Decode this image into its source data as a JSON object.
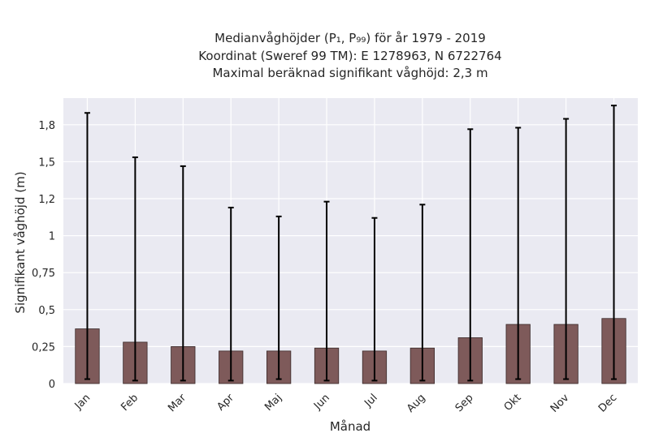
{
  "chart_data": {
    "type": "bar",
    "title_lines": [
      "Medianvåghöjder (P₁, P₉₉) för år 1979 - 2019",
      "Koordinat (Sweref 99 TM): E 1278963, N 6722764",
      "Maximal beräknad signifikant våghöjd: 2,3 m"
    ],
    "xlabel": "Månad",
    "ylabel": "Signifikant våghöjd (m)",
    "categories": [
      "Jan",
      "Feb",
      "Mar",
      "Apr",
      "Maj",
      "Jun",
      "Jul",
      "Aug",
      "Sep",
      "Okt",
      "Nov",
      "Dec"
    ],
    "values": [
      0.37,
      0.28,
      0.25,
      0.22,
      0.22,
      0.24,
      0.22,
      0.24,
      0.31,
      0.4,
      0.4,
      0.44
    ],
    "p1": [
      0.03,
      0.02,
      0.02,
      0.02,
      0.03,
      0.02,
      0.02,
      0.02,
      0.02,
      0.03,
      0.03,
      0.03
    ],
    "p99": [
      1.83,
      1.53,
      1.47,
      1.19,
      1.13,
      1.23,
      1.12,
      1.21,
      1.72,
      1.73,
      1.79,
      1.88
    ],
    "yticks": [
      0,
      0.25,
      0.5,
      0.75,
      1,
      1.25,
      1.5,
      1.75
    ],
    "ytick_labels": [
      "0",
      "0,25",
      "0,5",
      "0,75",
      "1",
      "1,2",
      "1,5",
      "1,8"
    ],
    "ylim": [
      0,
      1.93
    ],
    "bar_color": "#7e5a5a",
    "errorbar_color": "#000000",
    "background": "#eaeaf2",
    "grid": true
  }
}
